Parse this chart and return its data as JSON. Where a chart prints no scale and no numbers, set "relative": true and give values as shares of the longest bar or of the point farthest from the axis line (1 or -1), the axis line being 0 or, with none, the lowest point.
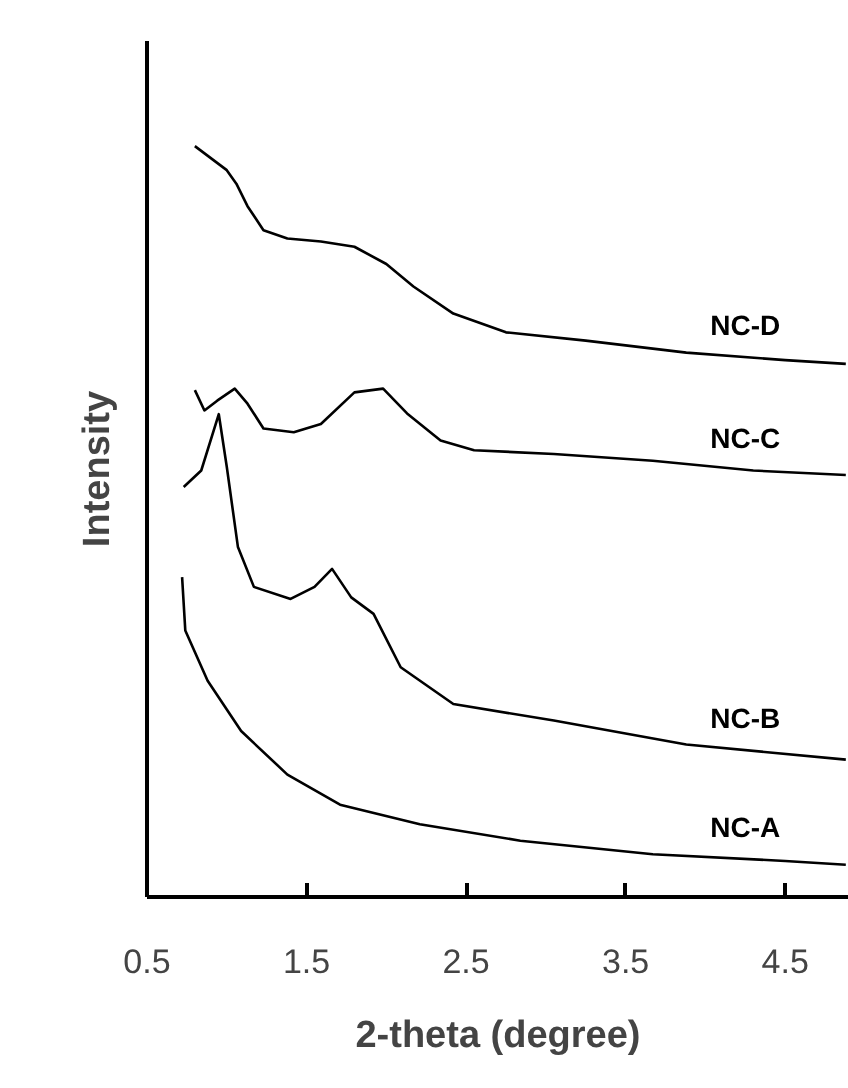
{
  "chart_data": {
    "type": "line",
    "relative": true,
    "xlabel": "2-theta (degree)",
    "ylabel": "Intensity",
    "xlim": [
      0.5,
      4.9
    ],
    "xticks": [
      0.5,
      1.5,
      2.5,
      3.5,
      4.5
    ],
    "grid": false,
    "legend": false,
    "marker": "none",
    "line_style": "solid",
    "series": [
      {
        "name": "NC-D",
        "color": "#000000",
        "x": [
          0.8,
          1.0,
          1.06,
          1.13,
          1.23,
          1.38,
          1.59,
          1.8,
          2.0,
          2.17,
          2.42,
          2.75,
          3.25,
          3.88,
          4.5,
          4.88
        ],
        "values": [
          1.0,
          0.968,
          0.95,
          0.92,
          0.888,
          0.877,
          0.873,
          0.866,
          0.843,
          0.813,
          0.777,
          0.752,
          0.741,
          0.725,
          0.715,
          0.71
        ]
      },
      {
        "name": "NC-C",
        "color": "#000000",
        "x": [
          0.8,
          0.86,
          0.94,
          1.05,
          1.13,
          1.23,
          1.42,
          1.59,
          1.8,
          1.98,
          2.13,
          2.34,
          2.55,
          3.05,
          3.67,
          4.3,
          4.88
        ],
        "values": [
          0.675,
          0.648,
          0.661,
          0.677,
          0.657,
          0.624,
          0.619,
          0.63,
          0.672,
          0.677,
          0.644,
          0.608,
          0.595,
          0.59,
          0.581,
          0.568,
          0.562
        ]
      },
      {
        "name": "NC-B",
        "color": "#000000",
        "x": [
          0.73,
          0.84,
          0.95,
          1.0,
          1.07,
          1.17,
          1.4,
          1.55,
          1.66,
          1.78,
          1.92,
          2.09,
          2.42,
          3.05,
          3.88,
          4.88
        ],
        "values": [
          0.546,
          0.568,
          0.643,
          0.573,
          0.466,
          0.413,
          0.397,
          0.413,
          0.437,
          0.399,
          0.377,
          0.306,
          0.257,
          0.235,
          0.203,
          0.183
        ]
      },
      {
        "name": "NC-A",
        "color": "#000000",
        "x": [
          0.72,
          0.74,
          0.88,
          1.09,
          1.38,
          1.71,
          2.21,
          2.84,
          3.67,
          4.5,
          4.88
        ],
        "values": [
          0.426,
          0.355,
          0.288,
          0.221,
          0.163,
          0.123,
          0.097,
          0.075,
          0.057,
          0.048,
          0.043
        ]
      }
    ]
  }
}
